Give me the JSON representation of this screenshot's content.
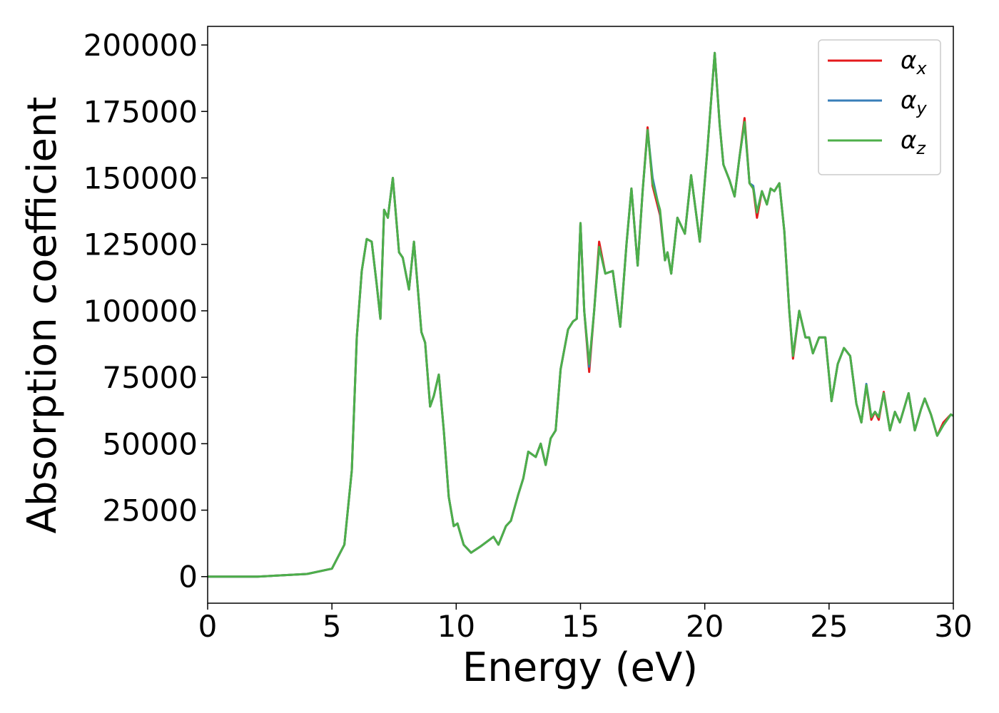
{
  "chart_data": {
    "type": "line",
    "xlabel": "Energy (eV)",
    "ylabel": "Absorption coefficient",
    "x": [
      0,
      2,
      4,
      5,
      5.5,
      5.8,
      6.0,
      6.2,
      6.4,
      6.6,
      6.8,
      6.95,
      7.1,
      7.25,
      7.45,
      7.7,
      7.85,
      8.1,
      8.3,
      8.6,
      8.75,
      8.95,
      9.1,
      9.3,
      9.5,
      9.7,
      9.9,
      10.05,
      10.3,
      10.6,
      11.0,
      11.5,
      11.7,
      12.0,
      12.2,
      12.5,
      12.7,
      12.9,
      13.2,
      13.4,
      13.6,
      13.8,
      14.0,
      14.2,
      14.5,
      14.7,
      14.85,
      15.0,
      15.15,
      15.35,
      15.55,
      15.75,
      16.0,
      16.3,
      16.6,
      16.85,
      17.05,
      17.3,
      17.5,
      17.7,
      17.9,
      18.2,
      18.4,
      18.5,
      18.65,
      18.9,
      19.2,
      19.45,
      19.8,
      20.1,
      20.4,
      20.6,
      20.75,
      21.0,
      21.2,
      21.4,
      21.6,
      21.8,
      21.95,
      22.1,
      22.3,
      22.5,
      22.65,
      22.8,
      23.0,
      23.2,
      23.4,
      23.55,
      23.8,
      24.05,
      24.2,
      24.35,
      24.6,
      24.85,
      25.1,
      25.35,
      25.6,
      25.85,
      26.1,
      26.3,
      26.5,
      26.7,
      26.85,
      27.0,
      27.2,
      27.45,
      27.65,
      27.85,
      28.2,
      28.45,
      28.7,
      28.85,
      29.1,
      29.35,
      29.6,
      29.9,
      30
    ],
    "series": [
      {
        "name": "αx",
        "color": "#e41a1c",
        "values": [
          0,
          0,
          1000,
          3000,
          12000,
          40000,
          90000,
          115000,
          127000,
          126000,
          110000,
          97000,
          138000,
          135000,
          150000,
          122000,
          120000,
          108000,
          126000,
          92000,
          88000,
          64000,
          68000,
          76000,
          55000,
          30000,
          19000,
          20000,
          12000,
          9000,
          11500,
          15000,
          12000,
          19000,
          21000,
          31000,
          37000,
          47000,
          45000,
          50000,
          42000,
          52000,
          55000,
          78000,
          93000,
          96000,
          97000,
          133000,
          100000,
          77000,
          100000,
          126000,
          114000,
          115000,
          94000,
          125000,
          146000,
          117000,
          145000,
          169000,
          147000,
          136000,
          119000,
          122000,
          114000,
          135000,
          129000,
          151000,
          126000,
          160000,
          197000,
          170000,
          155000,
          149000,
          143000,
          158000,
          172500,
          148000,
          146000,
          135000,
          145000,
          140000,
          146000,
          145000,
          148000,
          130000,
          100000,
          82000,
          100000,
          90000,
          90000,
          84000,
          90000,
          90000,
          66000,
          80000,
          86000,
          83000,
          65000,
          58000,
          72000,
          59000,
          62000,
          59000,
          69500,
          55000,
          62000,
          58000,
          69000,
          55000,
          63000,
          67000,
          61000,
          53000,
          58000,
          61000,
          60500
        ]
      },
      {
        "name": "αy",
        "color": "#377eb8",
        "values": [
          0,
          0,
          1000,
          3000,
          12000,
          40000,
          90000,
          115000,
          127000,
          126000,
          110000,
          97000,
          138000,
          135000,
          150000,
          122000,
          120000,
          108000,
          126000,
          92000,
          88000,
          64000,
          68000,
          76000,
          55000,
          30000,
          19000,
          20000,
          12000,
          9000,
          11500,
          15000,
          12000,
          19000,
          21000,
          31000,
          37000,
          47000,
          45000,
          50000,
          42000,
          52000,
          55000,
          78000,
          93000,
          96000,
          97000,
          133000,
          100000,
          79000,
          100000,
          124000,
          114000,
          115000,
          94000,
          125000,
          146000,
          117000,
          145000,
          168000,
          150000,
          137000,
          119000,
          122000,
          114000,
          135000,
          129000,
          151000,
          126000,
          160000,
          197000,
          170000,
          155000,
          149000,
          143000,
          158000,
          171000,
          148000,
          147000,
          137000,
          145000,
          140000,
          146000,
          145000,
          148000,
          130000,
          100000,
          83000,
          100000,
          90000,
          90000,
          84000,
          90000,
          90000,
          66000,
          80000,
          86000,
          83000,
          65000,
          58000,
          72500,
          60000,
          62000,
          60000,
          69000,
          55000,
          62000,
          58000,
          69000,
          55000,
          63000,
          67000,
          61000,
          53000,
          57000,
          61000,
          60500
        ]
      },
      {
        "name": "αz",
        "color": "#4daf4a",
        "values": [
          0,
          0,
          1000,
          3000,
          12000,
          40000,
          90000,
          115000,
          127000,
          126000,
          110000,
          97000,
          138000,
          135000,
          150000,
          122000,
          120000,
          108000,
          126000,
          92000,
          88000,
          64000,
          68000,
          76000,
          55000,
          30000,
          19000,
          20000,
          12000,
          9000,
          11500,
          15000,
          12000,
          19000,
          21000,
          31000,
          37000,
          47000,
          45000,
          50000,
          42000,
          52000,
          55000,
          78000,
          93000,
          96000,
          97000,
          133000,
          100000,
          80000,
          100000,
          124000,
          114000,
          115000,
          94000,
          125000,
          146000,
          117000,
          145000,
          168000,
          148000,
          138000,
          119000,
          122000,
          114000,
          135000,
          129000,
          151000,
          126000,
          160000,
          197000,
          170000,
          155000,
          149000,
          143000,
          158000,
          171000,
          148000,
          146000,
          137000,
          145000,
          140000,
          146000,
          145000,
          148000,
          130000,
          100000,
          83000,
          100000,
          90000,
          90000,
          84000,
          90000,
          90000,
          66000,
          80000,
          86000,
          83000,
          65000,
          58000,
          72000,
          60000,
          62000,
          60000,
          69000,
          55000,
          62000,
          58000,
          69000,
          55000,
          63000,
          67000,
          61000,
          53000,
          57000,
          61000,
          60500
        ]
      }
    ],
    "xlim": [
      0,
      30
    ],
    "xticks": [
      0,
      5,
      10,
      15,
      20,
      25,
      30
    ],
    "ylim": [
      -10000,
      207000
    ],
    "yticks": [
      0,
      25000,
      50000,
      75000,
      100000,
      125000,
      150000,
      175000,
      200000
    ],
    "grid": false,
    "legend": "upper right"
  }
}
